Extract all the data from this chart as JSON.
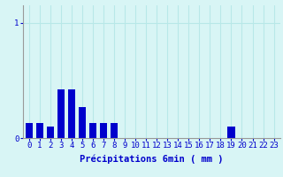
{
  "xlabel": "Précipitations 6min ( mm )",
  "background_color": "#d8f5f5",
  "bar_color": "#0000cc",
  "grid_color": "#b8e8e8",
  "ylim": [
    0,
    1.15
  ],
  "yticks": [
    0,
    1
  ],
  "ytick_labels": [
    "0",
    "1"
  ],
  "num_bars": 24,
  "values": [
    0.13,
    0.13,
    0.1,
    0.42,
    0.42,
    0.27,
    0.13,
    0.13,
    0.13,
    0.0,
    0.0,
    0.0,
    0.0,
    0.0,
    0.0,
    0.0,
    0.0,
    0.0,
    0.0,
    0.1,
    0.0,
    0.0,
    0.0,
    0.0
  ],
  "axis_color": "#0000cc",
  "xlabel_fontsize": 7.5,
  "tick_fontsize": 6.5,
  "fig_width": 3.2,
  "fig_height": 2.0,
  "dpi": 100
}
